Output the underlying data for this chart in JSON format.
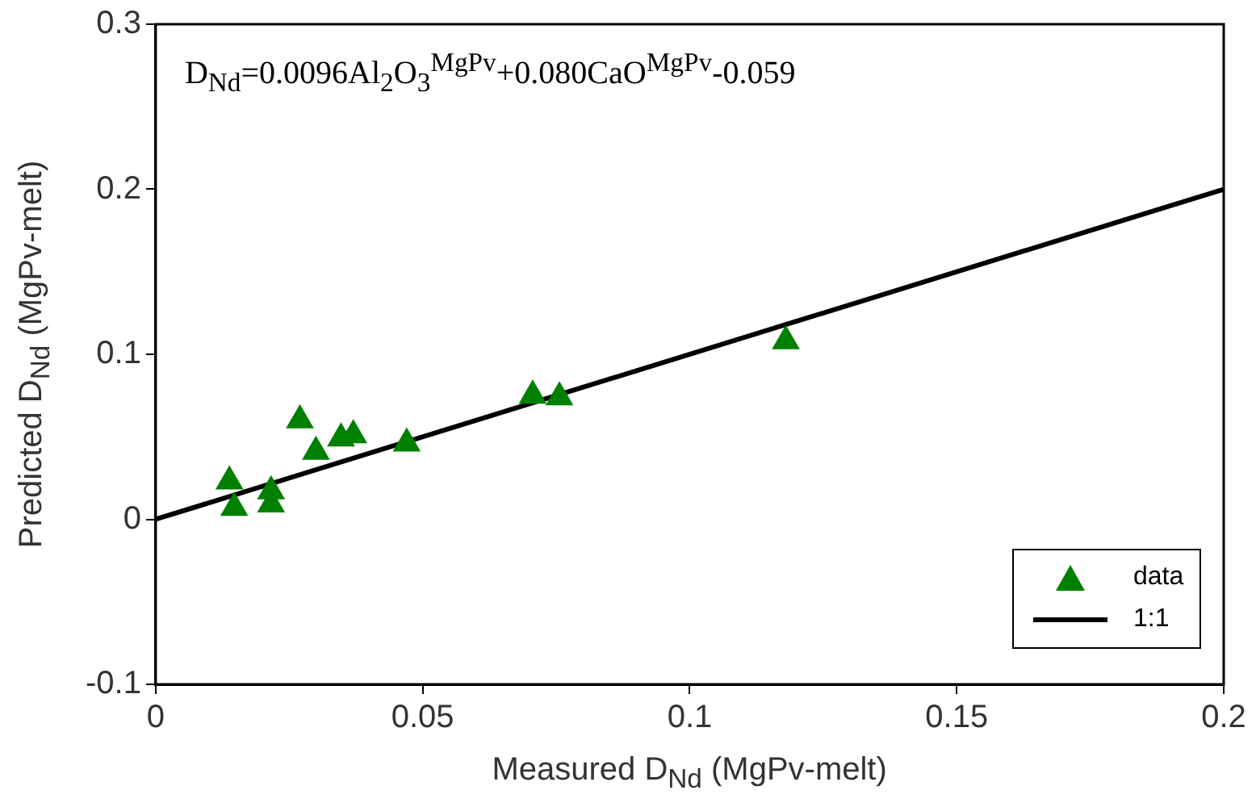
{
  "chart_data": {
    "type": "scatter",
    "xlabel": "Measured D$_{Nd}$ (MgPv-melt)",
    "ylabel": "Predicted D$_{Nd}$ (MgPv-melt)",
    "annotations": [
      "D$_{Nd}$=0.0096Al$_{2}$O$_{3}$$^{MgPv}$+0.080CaO$^{MgPv}$-0.059"
    ],
    "xlim": [
      0,
      0.2
    ],
    "xticks": [
      0,
      0.05,
      0.1,
      0.15,
      0.2
    ],
    "ylim": [
      -0.1,
      0.3
    ],
    "yticks": [
      -0.1,
      0,
      0.1,
      0.2,
      0.3
    ],
    "grid": false,
    "legend": "bottom right",
    "marker": "triangle",
    "series": [
      {
        "name": "data",
        "type": "scatter",
        "color": "#008000",
        "x": [
          0.0138,
          0.0147,
          0.0216,
          0.0216,
          0.027,
          0.03,
          0.0347,
          0.037,
          0.047,
          0.0706,
          0.0756,
          0.118
        ],
        "values": [
          0.023,
          0.007,
          0.009,
          0.017,
          0.06,
          0.041,
          0.049,
          0.051,
          0.046,
          0.075,
          0.074,
          0.108
        ]
      },
      {
        "name": "1:1",
        "type": "line",
        "color": "#000000",
        "marker": "none",
        "line_style": "solid",
        "x": [
          0,
          0.2
        ],
        "values": [
          0,
          0.2
        ]
      }
    ]
  }
}
